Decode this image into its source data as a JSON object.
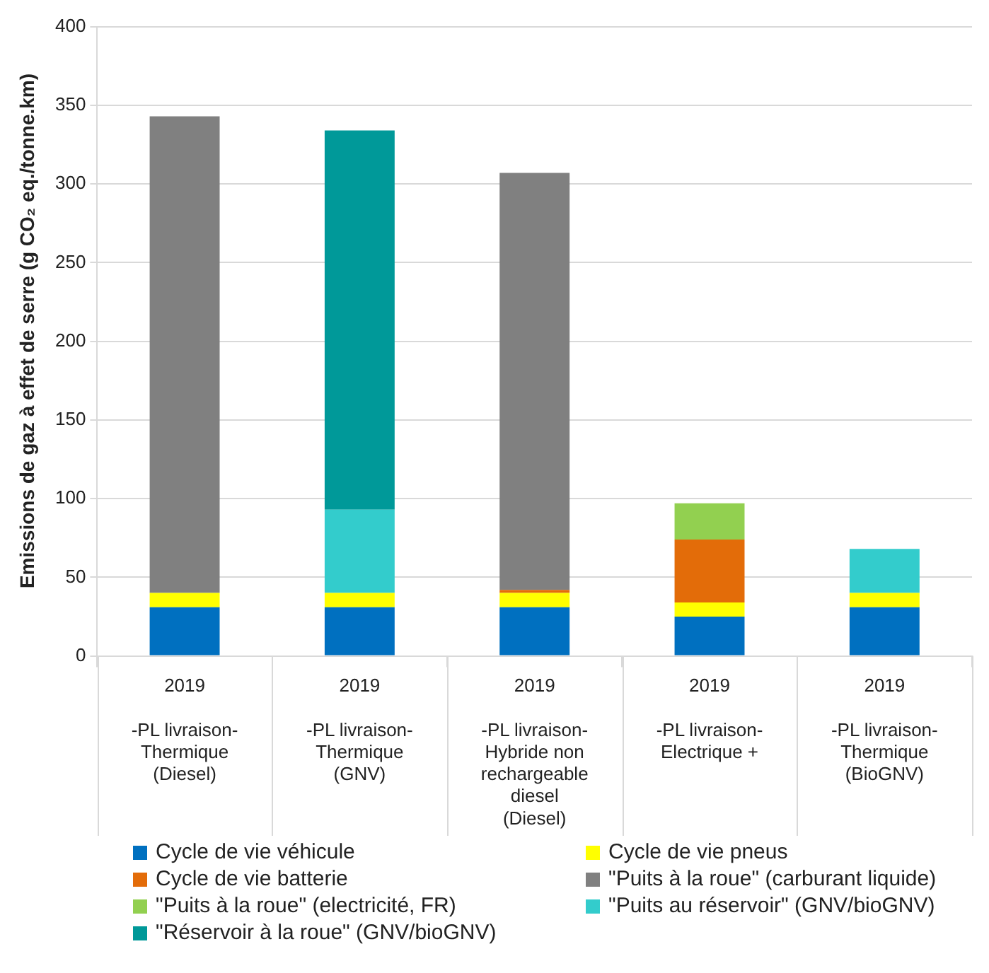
{
  "chart_data": {
    "type": "bar",
    "stacked": true,
    "ylabel": "Emissions de gaz à effet de serre (g CO₂ eq./tonne.km)",
    "categories": [
      "2019\n\n-PL livraison-\nThermique\n(Diesel)",
      "2019\n\n-PL livraison-\nThermique\n(GNV)",
      "2019\n\n-PL livraison-\nHybride non\nrechargeable\ndiesel\n(Diesel)",
      "2019\n\n-PL livraison-\nElectrique +",
      "2019\n\n-PL livraison-\nThermique\n(BioGNV)"
    ],
    "series": [
      {
        "name": "Cycle de vie véhicule",
        "color": "#0070c0",
        "values": [
          31,
          31,
          31,
          25,
          31
        ]
      },
      {
        "name": "Cycle de vie pneus",
        "color": "#ffff00",
        "values": [
          9,
          9,
          9,
          9,
          9
        ]
      },
      {
        "name": "Cycle de vie batterie",
        "color": "#e36c09",
        "values": [
          null,
          null,
          2,
          40,
          null
        ]
      },
      {
        "name": "\"Puits à la roue\" (carburant liquide)",
        "color": "#808080",
        "values": [
          303,
          null,
          265,
          null,
          null
        ]
      },
      {
        "name": "\"Puits à la roue\" (electricité, FR)",
        "color": "#92d050",
        "values": [
          null,
          null,
          null,
          23,
          null
        ]
      },
      {
        "name": "\"Puits au réservoir\" (GNV/bioGNV)",
        "color": "#33cccc",
        "values": [
          null,
          53,
          null,
          null,
          28
        ]
      },
      {
        "name": "\"Réservoir à la roue\" (GNV/bioGNV)",
        "color": "#009999",
        "values": [
          null,
          241,
          null,
          null,
          null
        ]
      }
    ],
    "ylim": [
      0,
      400
    ],
    "yticks": [
      0,
      50,
      100,
      150,
      200,
      250,
      300,
      350,
      400
    ],
    "grid": "y",
    "legend": "bottom"
  }
}
